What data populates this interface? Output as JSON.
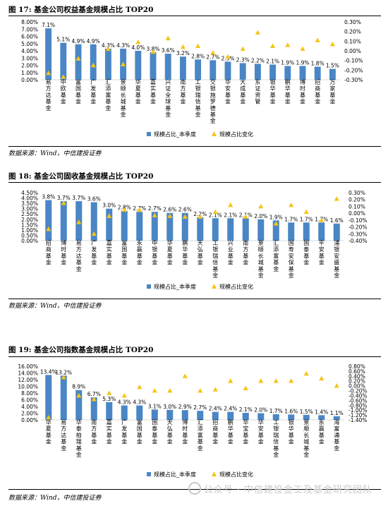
{
  "figures": [
    {
      "title": "图 17:  基金公司权益基金规模占比 TOP20",
      "source": "数据来源：Wind，中信建投证券"
    },
    {
      "title": "图 18:  基金公司固收基金规模占比 TOP20",
      "source": "数据来源：Wind，中信建投证券"
    },
    {
      "title": "图 19:  基金公司指数基金规模占比 TOP20",
      "source": "数据来源：Wind，中信建投证券"
    }
  ],
  "watermark": "公众号 · 中信建投金工及基金研究团队",
  "colors": {
    "bar": "#4a86c5",
    "triangle": "#f5c518",
    "text": "#000000",
    "axis": "#d9d9d9"
  },
  "chart_data": [
    {
      "type": "bar",
      "categories": [
        "易方达基金",
        "中欧基金",
        "富国基金",
        "广发基金",
        "汇添富基金",
        "景顺长城基金",
        "华夏基金",
        "嘉实基金",
        "兴证全球基金",
        "南方基金",
        "工银瑞信基金",
        "交银施罗德基金",
        "华安基金",
        "大成基金",
        "东证资管",
        "银华基金",
        "鹏华基金",
        "博时基金",
        "招商基金",
        "万家基金"
      ],
      "series": [
        {
          "name": "规模占比_本季度",
          "axis": "left",
          "values": [
            7.1,
            5.1,
            4.9,
            4.9,
            4.3,
            4.3,
            4.0,
            3.8,
            3.6,
            3.2,
            2.8,
            2.7,
            2.5,
            2.3,
            2.2,
            2.1,
            1.9,
            1.9,
            1.8,
            1.5
          ],
          "labels": [
            "7.1%",
            "5.1%",
            "4.9%",
            "4.9%",
            "4.3%",
            "4.3%",
            "4.0%",
            "3.8%",
            "3.6%",
            "3.2%",
            "2.8%",
            "2.7%",
            "2.5%",
            "2.3%",
            "2.2%",
            "2.1%",
            "1.9%",
            "1.9%",
            "1.8%",
            "1.5%"
          ]
        },
        {
          "name": "规模占比变化",
          "axis": "right",
          "type": "scatter",
          "values": [
            -0.23,
            -0.27,
            -0.08,
            -0.15,
            0.02,
            -0.14,
            0.09,
            -0.01,
            0.13,
            0.04,
            0.05,
            -0.02,
            -0.06,
            0.02,
            0.19,
            0.05,
            0.06,
            0.02,
            0.11,
            0.07
          ]
        }
      ],
      "left_axis": {
        "min": 0,
        "max": 8,
        "ticks": [
          "0.00%",
          "1.00%",
          "2.00%",
          "3.00%",
          "4.00%",
          "5.00%",
          "6.00%",
          "7.00%",
          "8.00%"
        ]
      },
      "right_axis": {
        "min": -0.3,
        "max": 0.3,
        "ticks": [
          "-0.30%",
          "-0.20%",
          "-0.10%",
          "0.00%",
          "0.10%",
          "0.20%",
          "0.30%"
        ]
      },
      "legend": "bottom"
    },
    {
      "type": "bar",
      "categories": [
        "招商基金",
        "博时基金",
        "易方达基金",
        "广发基金",
        "嘉实基金",
        "富国基金",
        "永赢基金",
        "中银基金",
        "华夏基金",
        "鹏华基金",
        "天弘基金",
        "工银瑞信基金",
        "兴业基金",
        "南方基金",
        "景顺长城基金",
        "汇添富基金",
        "国寿安保基金",
        "国泰基金",
        "平安基金",
        "浦银安盛基金"
      ],
      "series": [
        {
          "name": "规模占比_本季度",
          "axis": "left",
          "values": [
            3.8,
            3.7,
            3.7,
            3.6,
            3.0,
            2.8,
            2.7,
            2.7,
            2.6,
            2.6,
            2.2,
            2.1,
            2.1,
            2.1,
            2.0,
            1.9,
            1.7,
            1.7,
            1.7,
            1.6
          ],
          "labels": [
            "3.8%",
            "3.7%",
            "3.7%",
            "3.6%",
            "3.0%",
            "2.8%",
            "2.7%",
            "2.7%",
            "2.6%",
            "2.6%",
            "2.2%",
            "2.1%",
            "2.1%",
            "2.1%",
            "2.0%",
            "1.9%",
            "1.7%",
            "1.7%",
            "1.7%",
            "1.6%"
          ]
        },
        {
          "name": "规模占比变化",
          "axis": "right",
          "type": "scatter",
          "values": [
            -0.23,
            0.15,
            -0.13,
            -0.3,
            -0.04,
            0.05,
            0.05,
            -0.03,
            -0.04,
            -0.05,
            -0.05,
            0.02,
            0.12,
            -0.05,
            0.1,
            -0.15,
            0.12,
            0.02,
            -0.1,
            0.21
          ]
        }
      ],
      "left_axis": {
        "min": 0,
        "max": 4.5,
        "ticks": [
          "0.00%",
          "0.50%",
          "1.00%",
          "1.50%",
          "2.00%",
          "2.50%",
          "3.00%",
          "3.50%",
          "4.00%",
          "4.50%"
        ]
      },
      "right_axis": {
        "min": -0.4,
        "max": 0.3,
        "ticks": [
          "-0.40%",
          "-0.30%",
          "-0.20%",
          "-0.10%",
          "0.00%",
          "0.10%",
          "0.20%",
          "0.30%"
        ]
      },
      "legend": "bottom"
    },
    {
      "type": "bar",
      "categories": [
        "华夏基金",
        "易方达基金",
        "华泰柏瑞基金",
        "南方基金",
        "嘉实基金",
        "广发基金",
        "富国基金",
        "国泰基金",
        "天弘基金",
        "博时基金",
        "汇添富基金",
        "招商基金",
        "鹏华基金",
        "华宝基金",
        "华安基金",
        "工银瑞信基金",
        "银华基金",
        "景顺长城基金",
        "永赢基金",
        "海富通基金"
      ],
      "series": [
        {
          "name": "规模占比_本季度",
          "axis": "left",
          "values": [
            13.4,
            13.2,
            8.9,
            6.7,
            5.3,
            4.3,
            4.3,
            3.1,
            3.0,
            2.9,
            2.7,
            2.4,
            2.4,
            2.1,
            2.0,
            1.7,
            1.6,
            1.5,
            1.4,
            1.1
          ],
          "labels": [
            "13.4%",
            "13.2%",
            "8.9%",
            "6.7%",
            "5.3%",
            "4.3%",
            "4.3%",
            "3.1%",
            "3.0%",
            "2.9%",
            "2.7%",
            "2.4%",
            "2.4%",
            "2.1%",
            "2.0%",
            "1.7%",
            "1.6%",
            "1.5%",
            "1.4%",
            "1.1%"
          ]
        },
        {
          "name": "规模占比变化",
          "axis": "right",
          "type": "scatter",
          "values": [
            -1.3,
            0.35,
            -0.4,
            -0.55,
            -0.3,
            -0.4,
            -0.05,
            -0.2,
            -0.2,
            0.4,
            -0.2,
            -0.15,
            0.2,
            -0.1,
            0.2,
            0.2,
            0.2,
            0.5,
            0.3,
            0.0
          ]
        }
      ],
      "left_axis": {
        "min": 0,
        "max": 16,
        "ticks": [
          "0.00%",
          "2.00%",
          "4.00%",
          "6.00%",
          "8.00%",
          "10.00%",
          "12.00%",
          "14.00%",
          "16.00%"
        ]
      },
      "right_axis": {
        "min": -1.4,
        "max": 0.8,
        "ticks": [
          "-1.40%",
          "-1.20%",
          "-1.00%",
          "-0.80%",
          "-0.60%",
          "-0.40%",
          "-0.20%",
          "0.00%",
          "0.20%",
          "0.40%",
          "0.60%",
          "0.80%"
        ]
      },
      "legend": "bottom"
    }
  ]
}
